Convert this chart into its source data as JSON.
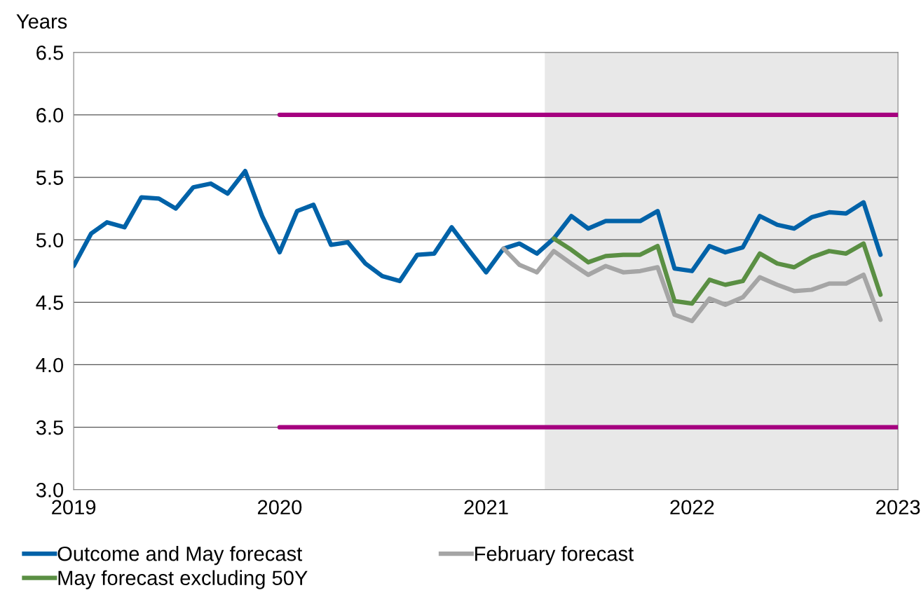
{
  "chart_data": {
    "type": "line",
    "ylabel": "Years",
    "ylim": [
      3.0,
      6.5
    ],
    "yticks": [
      {
        "value": 3.0,
        "label": "3.0"
      },
      {
        "value": 3.5,
        "label": "3.5"
      },
      {
        "value": 4.0,
        "label": "4.0"
      },
      {
        "value": 4.5,
        "label": "4.5"
      },
      {
        "value": 5.0,
        "label": "5.0"
      },
      {
        "value": 5.5,
        "label": "5.5"
      },
      {
        "value": 6.0,
        "label": "6.0"
      },
      {
        "value": 6.5,
        "label": "6.5"
      }
    ],
    "xlim": [
      "2019-01",
      "2023-01"
    ],
    "xticks": [
      "2019",
      "2020",
      "2021",
      "2022",
      "2023"
    ],
    "grid": "y",
    "legend": "bottom",
    "line_style": "solid",
    "marker": "none",
    "bands": [
      {
        "axis": "x",
        "from": "2021-04-15",
        "to": "2023-01",
        "color": "#e8e8e8"
      }
    ],
    "series": [
      {
        "name": "Outcome and May forecast",
        "color": "#0062a8",
        "x": [
          "2019-01",
          "2019-02",
          "2019-03",
          "2019-04",
          "2019-05",
          "2019-06",
          "2019-07",
          "2019-08",
          "2019-09",
          "2019-10",
          "2019-11",
          "2019-12",
          "2020-01",
          "2020-02",
          "2020-03",
          "2020-04",
          "2020-05",
          "2020-06",
          "2020-07",
          "2020-08",
          "2020-09",
          "2020-10",
          "2020-11",
          "2020-12",
          "2021-01",
          "2021-02",
          "2021-03",
          "2021-04",
          "2021-05",
          "2021-06",
          "2021-07",
          "2021-08",
          "2021-09",
          "2021-10",
          "2021-11",
          "2021-12",
          "2022-01",
          "2022-02",
          "2022-03",
          "2022-04",
          "2022-05",
          "2022-06",
          "2022-07",
          "2022-08",
          "2022-09",
          "2022-10",
          "2022-11",
          "2022-12"
        ],
        "values": [
          4.79,
          5.05,
          5.14,
          5.1,
          5.34,
          5.33,
          5.25,
          5.42,
          5.45,
          5.37,
          5.55,
          5.19,
          4.9,
          5.23,
          5.28,
          4.96,
          4.98,
          4.81,
          4.71,
          4.67,
          4.88,
          4.89,
          5.1,
          4.92,
          4.74,
          4.93,
          4.97,
          4.89,
          5.01,
          5.19,
          5.09,
          5.15,
          5.15,
          5.15,
          5.23,
          4.77,
          4.75,
          4.95,
          4.9,
          4.94,
          5.19,
          5.12,
          5.09,
          5.18,
          5.22,
          5.21,
          5.3,
          4.88
        ]
      },
      {
        "name": "May forecast excluding 50Y",
        "color": "#5a8f43",
        "x": [
          "2021-05",
          "2021-06",
          "2021-07",
          "2021-08",
          "2021-09",
          "2021-10",
          "2021-11",
          "2021-12",
          "2022-01",
          "2022-02",
          "2022-03",
          "2022-04",
          "2022-05",
          "2022-06",
          "2022-07",
          "2022-08",
          "2022-09",
          "2022-10",
          "2022-11",
          "2022-12"
        ],
        "values": [
          5.01,
          4.92,
          4.82,
          4.87,
          4.88,
          4.88,
          4.95,
          4.51,
          4.49,
          4.68,
          4.64,
          4.67,
          4.89,
          4.81,
          4.78,
          4.86,
          4.91,
          4.89,
          4.97,
          4.56
        ]
      },
      {
        "name": "February forecast",
        "color": "#a5a5a5",
        "x": [
          "2021-02",
          "2021-03",
          "2021-04",
          "2021-05",
          "2021-06",
          "2021-07",
          "2021-08",
          "2021-09",
          "2021-10",
          "2021-11",
          "2021-12",
          "2022-01",
          "2022-02",
          "2022-03",
          "2022-04",
          "2022-05",
          "2022-06",
          "2022-07",
          "2022-08",
          "2022-09",
          "2022-10",
          "2022-11",
          "2022-12"
        ],
        "values": [
          4.93,
          4.8,
          4.74,
          4.91,
          4.81,
          4.72,
          4.79,
          4.74,
          4.75,
          4.78,
          4.4,
          4.35,
          4.53,
          4.48,
          4.54,
          4.7,
          4.64,
          4.59,
          4.6,
          4.65,
          4.65,
          4.72,
          4.36
        ]
      },
      {
        "color": "#a5007f",
        "x": [
          "2020-01",
          "2023-01"
        ],
        "values": [
          6.0,
          6.0
        ]
      },
      {
        "color": "#a5007f",
        "x": [
          "2020-01",
          "2023-01"
        ],
        "values": [
          3.5,
          3.5
        ]
      }
    ]
  }
}
